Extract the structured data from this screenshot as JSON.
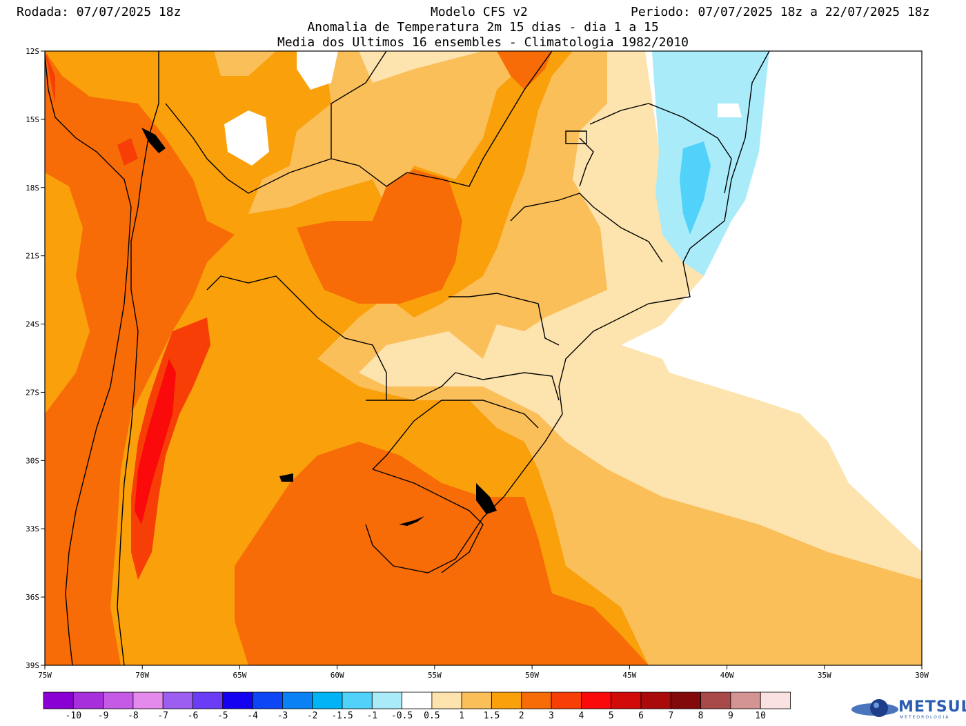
{
  "header": {
    "run": "Rodada: 07/07/2025 18z",
    "model": "Modelo CFS v2",
    "period": "Periodo: 07/07/2025 18z a 22/07/2025 18z",
    "subtitle1": "Anomalia de Temperatura 2m 15 dias - dia 1 a 15",
    "subtitle2": "Media dos Ultimos 16 ensembles - Climatologia 1982/2010"
  },
  "map": {
    "lat_ticks": [
      "12S",
      "15S",
      "18S",
      "21S",
      "24S",
      "27S",
      "30S",
      "33S",
      "36S",
      "39S"
    ],
    "lon_ticks": [
      "75W",
      "70W",
      "65W",
      "60W",
      "55W",
      "50W",
      "45W",
      "40W",
      "35W",
      "30W"
    ],
    "lat_range": [
      -39,
      -12
    ],
    "lon_range": [
      -75,
      -30
    ]
  },
  "colorbar": {
    "labels": [
      "-10",
      "-9",
      "-8",
      "-7",
      "-6",
      "-5",
      "-4",
      "-3",
      "-2",
      "-1.5",
      "-1",
      "-0.5",
      "0.5",
      "1",
      "1.5",
      "2",
      "3",
      "4",
      "5",
      "6",
      "7",
      "8",
      "9",
      "10"
    ],
    "colors": [
      "#8a00d4",
      "#a830dc",
      "#c55ae6",
      "#e48aec",
      "#9b5ef0",
      "#6a3cf5",
      "#1400f0",
      "#0c46f5",
      "#0a82f5",
      "#00b4f5",
      "#50d2fa",
      "#aaebfa",
      "#ffffff",
      "#fde3ad",
      "#fbbf5a",
      "#f9a00a",
      "#f76c06",
      "#f63e06",
      "#fa0a0a",
      "#d20a0a",
      "#aa0a0a",
      "#820a0a",
      "#a84a4a",
      "#d49494",
      "#fbe2e2"
    ]
  },
  "logo": {
    "word": "METSUL",
    "sub": "METEOROLOGIA",
    "color": "#2a5db0"
  }
}
